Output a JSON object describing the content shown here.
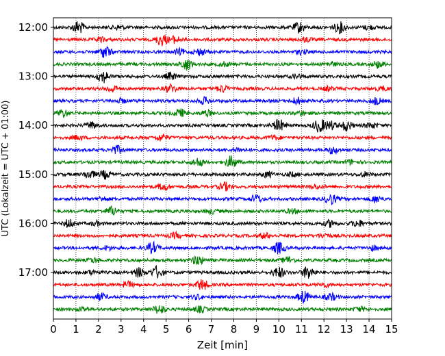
{
  "chart_data": {
    "type": "line",
    "title": "",
    "xlabel": "Zeit  [min]",
    "ylabel": "UTC (Lokalzeit = UTC + 01:00)",
    "xlim": [
      0,
      15
    ],
    "x_ticks": [
      0,
      1,
      2,
      3,
      4,
      5,
      6,
      7,
      8,
      9,
      10,
      11,
      12,
      13,
      14,
      15
    ],
    "y_tick_labels": [
      "12:00",
      "13:00",
      "14:00",
      "15:00",
      "16:00",
      "17:00"
    ],
    "grid": "vertical dotted",
    "trace_colors": [
      "#000000",
      "#ff0000",
      "#0000ff",
      "#008000"
    ],
    "rows": [
      {
        "start": "12:00",
        "color": "#000000",
        "bursts": [
          [
            1.1,
            1.0
          ],
          [
            2.9,
            0.3
          ],
          [
            10.9,
            0.8
          ],
          [
            12.7,
            0.8
          ],
          [
            14.0,
            0.3
          ]
        ]
      },
      {
        "start": "12:15",
        "color": "#ff0000",
        "bursts": [
          [
            4.8,
            0.9
          ],
          [
            5.4,
            0.5
          ],
          [
            2.1,
            0.3
          ],
          [
            11.2,
            0.3
          ]
        ]
      },
      {
        "start": "12:30",
        "color": "#0000ff",
        "bursts": [
          [
            2.3,
            0.9
          ],
          [
            6.5,
            0.5
          ],
          [
            5.6,
            0.4
          ],
          [
            11.0,
            0.3
          ]
        ]
      },
      {
        "start": "12:45",
        "color": "#008000",
        "bursts": [
          [
            5.9,
            0.9
          ],
          [
            14.4,
            0.5
          ],
          [
            12.3,
            0.3
          ],
          [
            7.6,
            0.3
          ]
        ]
      },
      {
        "start": "13:00",
        "color": "#000000",
        "bursts": [
          [
            2.2,
            0.9
          ],
          [
            5.2,
            0.5
          ],
          [
            10.8,
            0.3
          ]
        ]
      },
      {
        "start": "13:15",
        "color": "#ff0000",
        "bursts": [
          [
            2.6,
            0.5
          ],
          [
            5.2,
            0.6
          ],
          [
            7.5,
            0.5
          ],
          [
            12.2,
            0.3
          ],
          [
            14.6,
            0.3
          ]
        ]
      },
      {
        "start": "13:30",
        "color": "#0000ff",
        "bursts": [
          [
            6.7,
            0.5
          ],
          [
            10.8,
            0.5
          ],
          [
            14.3,
            0.5
          ],
          [
            3.0,
            0.3
          ]
        ]
      },
      {
        "start": "13:45",
        "color": "#008000",
        "bursts": [
          [
            0.4,
            0.6
          ],
          [
            5.6,
            0.6
          ],
          [
            6.8,
            0.4
          ],
          [
            11.0,
            0.3
          ]
        ]
      },
      {
        "start": "14:00",
        "color": "#000000",
        "bursts": [
          [
            1.7,
            0.5
          ],
          [
            10.0,
            0.9
          ],
          [
            11.8,
            1.0
          ],
          [
            12.3,
            0.6
          ],
          [
            13.0,
            0.8
          ],
          [
            14.1,
            0.4
          ]
        ]
      },
      {
        "start": "14:15",
        "color": "#ff0000",
        "bursts": [
          [
            4.8,
            0.5
          ],
          [
            1.1,
            0.3
          ],
          [
            9.8,
            0.3
          ]
        ]
      },
      {
        "start": "14:30",
        "color": "#0000ff",
        "bursts": [
          [
            2.8,
            0.6
          ],
          [
            12.4,
            0.5
          ],
          [
            8.2,
            0.3
          ]
        ]
      },
      {
        "start": "14:45",
        "color": "#008000",
        "bursts": [
          [
            6.4,
            0.6
          ],
          [
            7.9,
            0.9
          ],
          [
            13.2,
            0.3
          ]
        ]
      },
      {
        "start": "15:00",
        "color": "#000000",
        "bursts": [
          [
            1.6,
            0.6
          ],
          [
            2.3,
            0.6
          ],
          [
            9.5,
            0.4
          ],
          [
            10.6,
            0.3
          ],
          [
            13.8,
            0.3
          ]
        ]
      },
      {
        "start": "15:15",
        "color": "#ff0000",
        "bursts": [
          [
            4.9,
            0.5
          ],
          [
            7.6,
            0.6
          ],
          [
            11.6,
            0.3
          ]
        ]
      },
      {
        "start": "15:30",
        "color": "#0000ff",
        "bursts": [
          [
            9.0,
            0.6
          ],
          [
            12.3,
            0.8
          ],
          [
            14.3,
            0.5
          ],
          [
            2.2,
            0.3
          ]
        ]
      },
      {
        "start": "15:45",
        "color": "#008000",
        "bursts": [
          [
            2.6,
            0.7
          ],
          [
            7.0,
            0.3
          ],
          [
            10.6,
            0.3
          ]
        ]
      },
      {
        "start": "16:00",
        "color": "#000000",
        "bursts": [
          [
            0.7,
            0.6
          ],
          [
            12.3,
            0.5
          ],
          [
            13.5,
            0.5
          ],
          [
            1.9,
            0.3
          ]
        ]
      },
      {
        "start": "16:15",
        "color": "#ff0000",
        "bursts": [
          [
            5.4,
            0.4
          ],
          [
            9.4,
            0.4
          ],
          [
            12.0,
            0.3
          ]
        ]
      },
      {
        "start": "16:30",
        "color": "#0000ff",
        "bursts": [
          [
            4.4,
            0.8
          ],
          [
            10.0,
            0.9
          ],
          [
            2.4,
            0.3
          ],
          [
            14.2,
            0.3
          ]
        ]
      },
      {
        "start": "16:45",
        "color": "#008000",
        "bursts": [
          [
            6.4,
            0.7
          ],
          [
            10.4,
            0.5
          ],
          [
            1.8,
            0.3
          ]
        ]
      },
      {
        "start": "17:00",
        "color": "#000000",
        "bursts": [
          [
            3.8,
            0.7
          ],
          [
            4.6,
            0.9
          ],
          [
            10.0,
            0.8
          ],
          [
            11.3,
            1.0
          ],
          [
            1.7,
            0.3
          ]
        ]
      },
      {
        "start": "17:15",
        "color": "#ff0000",
        "bursts": [
          [
            6.6,
            0.8
          ],
          [
            3.3,
            0.4
          ],
          [
            12.0,
            0.3
          ]
        ]
      },
      {
        "start": "17:30",
        "color": "#0000ff",
        "bursts": [
          [
            2.1,
            0.5
          ],
          [
            11.1,
            0.9
          ],
          [
            12.3,
            0.5
          ],
          [
            6.4,
            0.3
          ]
        ]
      },
      {
        "start": "17:45",
        "color": "#008000",
        "bursts": [
          [
            4.7,
            0.7
          ],
          [
            6.5,
            0.4
          ],
          [
            1.3,
            0.3
          ],
          [
            13.6,
            0.3
          ]
        ]
      }
    ]
  }
}
